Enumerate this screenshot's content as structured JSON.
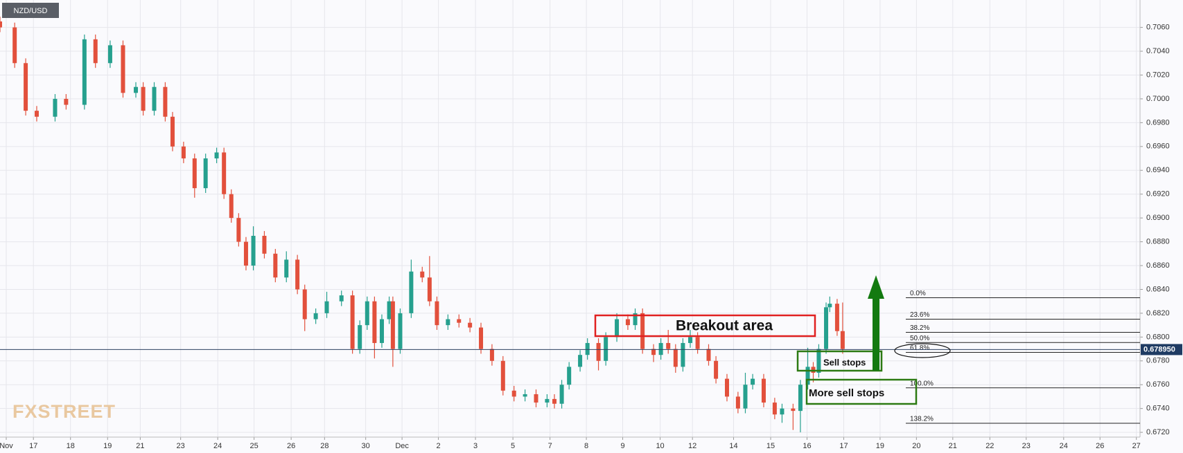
{
  "chart_data": {
    "type": "candlestick",
    "symbol": "NZD/USD",
    "watermark": "FXSTREET",
    "up_color": "#26a08e",
    "down_color": "#e2503c",
    "grid": true,
    "x": [
      0.0,
      0.4,
      0.7,
      1.0,
      1.5,
      1.8,
      2.3,
      2.6,
      3.0,
      3.35,
      3.7,
      3.9,
      4.2,
      4.5,
      4.7,
      5.0,
      5.3,
      5.6,
      5.9,
      6.1,
      6.3,
      6.5,
      6.7,
      6.9,
      7.2,
      7.5,
      7.8,
      8.1,
      8.3,
      8.6,
      8.9,
      9.3,
      9.6,
      9.8,
      10.0,
      10.2,
      10.4,
      10.6,
      10.7,
      10.9,
      11.2,
      11.5,
      11.7,
      11.9,
      12.2,
      12.5,
      12.8,
      13.1,
      13.4,
      13.7,
      14.0,
      14.3,
      14.6,
      14.9,
      15.1,
      15.3,
      15.5,
      15.8,
      16.0,
      16.3,
      16.5,
      16.8,
      17.1,
      17.3,
      17.5,
      17.8,
      18.0,
      18.2,
      18.4,
      18.6,
      18.8,
      19.0,
      19.3,
      19.5,
      19.8,
      20.1,
      20.3,
      20.5,
      20.8,
      21.1,
      21.3,
      21.6,
      21.8,
      22.0,
      22.15,
      22.3,
      22.5,
      22.6,
      22.8,
      22.95
    ],
    "open": [
      0.7065,
      0.706,
      0.703,
      0.699,
      0.6985,
      0.7,
      0.6995,
      0.705,
      0.703,
      0.7045,
      0.7005,
      0.701,
      0.699,
      0.701,
      0.6985,
      0.696,
      0.695,
      0.6925,
      0.695,
      0.6955,
      0.692,
      0.69,
      0.688,
      0.686,
      0.6885,
      0.687,
      0.685,
      0.6865,
      0.684,
      0.6815,
      0.682,
      0.683,
      0.6835,
      0.679,
      0.681,
      0.683,
      0.6795,
      0.6815,
      0.683,
      0.679,
      0.682,
      0.6855,
      0.685,
      0.683,
      0.681,
      0.6815,
      0.6812,
      0.6808,
      0.679,
      0.678,
      0.6755,
      0.675,
      0.6752,
      0.6745,
      0.6748,
      0.6744,
      0.676,
      0.6775,
      0.6785,
      0.6795,
      0.678,
      0.68,
      0.6815,
      0.681,
      0.682,
      0.679,
      0.6785,
      0.6795,
      0.679,
      0.6775,
      0.6795,
      0.68,
      0.679,
      0.678,
      0.6765,
      0.675,
      0.674,
      0.676,
      0.6765,
      0.6745,
      0.6735,
      0.674,
      0.6738,
      0.676,
      0.6775,
      0.677,
      0.679,
      0.6825,
      0.6828,
      0.6805
    ],
    "high": [
      0.7069,
      0.7064,
      0.7034,
      0.6994,
      0.7004,
      0.7004,
      0.7054,
      0.7054,
      0.7049,
      0.7049,
      0.7014,
      0.7014,
      0.7014,
      0.7014,
      0.6989,
      0.6964,
      0.6954,
      0.6954,
      0.6959,
      0.6959,
      0.6924,
      0.6904,
      0.6884,
      0.6893,
      0.6889,
      0.6874,
      0.6872,
      0.6869,
      0.6844,
      0.6824,
      0.6838,
      0.6839,
      0.6839,
      0.6814,
      0.6834,
      0.6834,
      0.6819,
      0.6834,
      0.6834,
      0.6824,
      0.6865,
      0.6859,
      0.6868,
      0.6834,
      0.6819,
      0.6819,
      0.6816,
      0.6812,
      0.6794,
      0.6784,
      0.6759,
      0.6756,
      0.6756,
      0.6752,
      0.6752,
      0.6764,
      0.6779,
      0.6789,
      0.6799,
      0.6799,
      0.6804,
      0.682,
      0.6819,
      0.6824,
      0.6824,
      0.6794,
      0.6799,
      0.6806,
      0.6794,
      0.6799,
      0.6806,
      0.6804,
      0.6794,
      0.6784,
      0.6769,
      0.6754,
      0.677,
      0.6769,
      0.6769,
      0.6749,
      0.6744,
      0.6744,
      0.6764,
      0.6791,
      0.6779,
      0.6794,
      0.6829,
      0.6834,
      0.6832,
      0.6829
    ],
    "low": [
      0.7056,
      0.7026,
      0.6986,
      0.6981,
      0.6981,
      0.6991,
      0.6991,
      0.7026,
      0.7026,
      0.7001,
      0.7001,
      0.6986,
      0.6986,
      0.6981,
      0.6956,
      0.6946,
      0.6917,
      0.6921,
      0.6946,
      0.6916,
      0.6896,
      0.6876,
      0.6856,
      0.6856,
      0.6866,
      0.6846,
      0.6846,
      0.6836,
      0.6805,
      0.6811,
      0.6816,
      0.6826,
      0.6786,
      0.6786,
      0.6806,
      0.6782,
      0.6791,
      0.6811,
      0.6775,
      0.6786,
      0.6816,
      0.6846,
      0.6826,
      0.6806,
      0.6806,
      0.6808,
      0.6804,
      0.6786,
      0.6776,
      0.6751,
      0.6746,
      0.6746,
      0.6741,
      0.6741,
      0.674,
      0.674,
      0.6756,
      0.6771,
      0.6781,
      0.6772,
      0.6776,
      0.6796,
      0.6806,
      0.6806,
      0.6786,
      0.6779,
      0.6781,
      0.6786,
      0.677,
      0.6771,
      0.6791,
      0.6786,
      0.6776,
      0.6761,
      0.6746,
      0.6736,
      0.6736,
      0.6756,
      0.6741,
      0.6731,
      0.6728,
      0.6722,
      0.672,
      0.6756,
      0.6762,
      0.6766,
      0.6786,
      0.6821,
      0.6801,
      0.6786
    ],
    "close": [
      0.706,
      0.703,
      0.699,
      0.6985,
      0.7,
      0.6995,
      0.705,
      0.703,
      0.7045,
      0.7005,
      0.701,
      0.699,
      0.701,
      0.6985,
      0.696,
      0.695,
      0.6925,
      0.695,
      0.6955,
      0.692,
      0.69,
      0.688,
      0.686,
      0.6885,
      0.687,
      0.685,
      0.6865,
      0.684,
      0.6815,
      0.682,
      0.683,
      0.6835,
      0.679,
      0.681,
      0.683,
      0.6795,
      0.6815,
      0.683,
      0.679,
      0.682,
      0.6855,
      0.685,
      0.683,
      0.681,
      0.6815,
      0.6812,
      0.6808,
      0.679,
      0.678,
      0.6755,
      0.675,
      0.6752,
      0.6745,
      0.6748,
      0.6744,
      0.676,
      0.6775,
      0.6785,
      0.6795,
      0.678,
      0.68,
      0.6815,
      0.681,
      0.682,
      0.679,
      0.6785,
      0.6795,
      0.679,
      0.6775,
      0.6795,
      0.68,
      0.679,
      0.678,
      0.6765,
      0.675,
      0.674,
      0.676,
      0.6765,
      0.6745,
      0.6735,
      0.674,
      0.6738,
      0.676,
      0.6775,
      0.677,
      0.679,
      0.6825,
      0.6828,
      0.6805,
      0.679
    ],
    "xlim": [
      0,
      31.05
    ],
    "xticks": [
      {
        "value": 0.17,
        "label": "Nov"
      },
      {
        "value": 0.91,
        "label": "17"
      },
      {
        "value": 1.92,
        "label": "18"
      },
      {
        "value": 2.93,
        "label": "19"
      },
      {
        "value": 3.82,
        "label": "21"
      },
      {
        "value": 4.92,
        "label": "23"
      },
      {
        "value": 5.93,
        "label": "24"
      },
      {
        "value": 6.92,
        "label": "25"
      },
      {
        "value": 7.93,
        "label": "26"
      },
      {
        "value": 8.84,
        "label": "28"
      },
      {
        "value": 9.96,
        "label": "30"
      },
      {
        "value": 10.95,
        "label": "Dec"
      },
      {
        "value": 11.94,
        "label": "2"
      },
      {
        "value": 12.95,
        "label": "3"
      },
      {
        "value": 13.97,
        "label": "5"
      },
      {
        "value": 14.98,
        "label": "7"
      },
      {
        "value": 15.97,
        "label": "8"
      },
      {
        "value": 16.96,
        "label": "9"
      },
      {
        "value": 17.98,
        "label": "10"
      },
      {
        "value": 18.86,
        "label": "12"
      },
      {
        "value": 19.98,
        "label": "14"
      },
      {
        "value": 20.99,
        "label": "15"
      },
      {
        "value": 21.98,
        "label": "16"
      },
      {
        "value": 22.98,
        "label": "17"
      },
      {
        "value": 23.97,
        "label": "19"
      },
      {
        "value": 24.96,
        "label": "20"
      },
      {
        "value": 25.95,
        "label": "21"
      },
      {
        "value": 26.96,
        "label": "22"
      },
      {
        "value": 27.95,
        "label": "23"
      },
      {
        "value": 28.97,
        "label": "24"
      },
      {
        "value": 29.96,
        "label": "26"
      },
      {
        "value": 30.95,
        "label": "27"
      }
    ],
    "ylim": [
      0.6716,
      0.7083
    ],
    "yticks": [
      {
        "value": 0.672,
        "label": "0.6720"
      },
      {
        "value": 0.674,
        "label": "0.6740"
      },
      {
        "value": 0.676,
        "label": "0.6760"
      },
      {
        "value": 0.678,
        "label": "0.6780"
      },
      {
        "value": 0.68,
        "label": "0.6800"
      },
      {
        "value": 0.682,
        "label": "0.6820"
      },
      {
        "value": 0.684,
        "label": "0.6840"
      },
      {
        "value": 0.686,
        "label": "0.6860"
      },
      {
        "value": 0.688,
        "label": "0.6880"
      },
      {
        "value": 0.69,
        "label": "0.6900"
      },
      {
        "value": 0.692,
        "label": "0.6920"
      },
      {
        "value": 0.694,
        "label": "0.6940"
      },
      {
        "value": 0.696,
        "label": "0.6960"
      },
      {
        "value": 0.698,
        "label": "0.6980"
      },
      {
        "value": 0.7,
        "label": "0.7000"
      },
      {
        "value": 0.702,
        "label": "0.7020"
      },
      {
        "value": 0.704,
        "label": "0.7040"
      },
      {
        "value": 0.706,
        "label": "0.7060"
      }
    ],
    "last_price": {
      "value": 0.67895,
      "label": "0.678950"
    },
    "fib_levels": [
      {
        "label": "0.0%",
        "value": 0.6833
      },
      {
        "label": "23.6%",
        "value": 0.6815
      },
      {
        "label": "38.2%",
        "value": 0.6804
      },
      {
        "label": "50.0%",
        "value": 0.67954
      },
      {
        "label": "61.8%",
        "value": 0.67871
      },
      {
        "label": "100.0%",
        "value": 0.67574
      },
      {
        "label": "138.2%",
        "value": 0.67276
      }
    ],
    "annotations": [
      "Breakout area",
      "Sell stops",
      "More sell stops"
    ]
  }
}
